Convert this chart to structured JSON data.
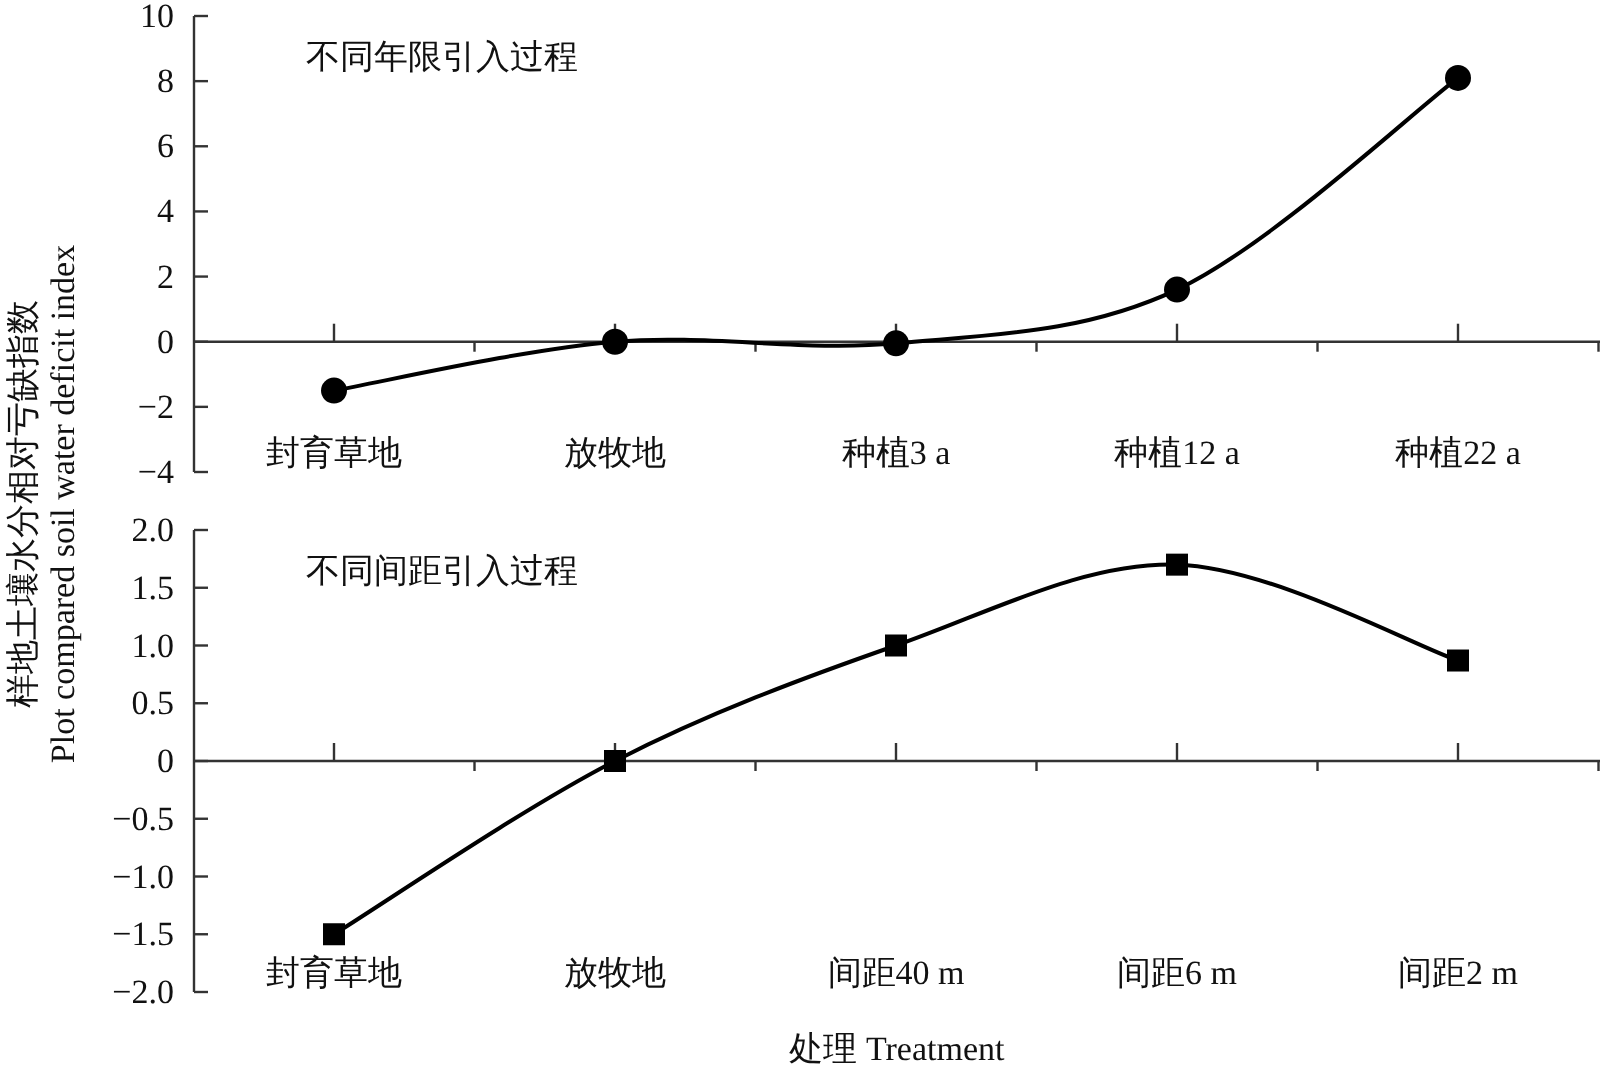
{
  "chart_data": [
    {
      "type": "line",
      "title": "不同年限引入过程",
      "ylabel": "样地土壤水分相对亏缺指数\nPlot compared soil water deficit index",
      "categories": [
        "封育草地",
        "放牧地",
        "种植3 a",
        "种植12 a",
        "种植22 a"
      ],
      "series": [
        {
          "color": "#000000",
          "values": [
            -1.5,
            0,
            -0.05,
            1.6,
            8.1
          ]
        }
      ],
      "ylim": [
        -4,
        10
      ],
      "yticks": [
        -4,
        -2,
        0,
        2,
        4,
        6,
        8,
        10
      ],
      "marker": "circle",
      "line_style": "solid"
    },
    {
      "type": "line",
      "title": "不同间距引入过程",
      "xlabel": "处理 Treatment",
      "categories": [
        "封育草地",
        "放牧地",
        "间距40 m",
        "间距6 m",
        "间距2 m"
      ],
      "series": [
        {
          "color": "#000000",
          "values": [
            -1.5,
            0,
            1.0,
            1.7,
            0.87
          ]
        }
      ],
      "ylim": [
        -2,
        2
      ],
      "yticks": [
        {
          "value": -2,
          "label": "−2.0"
        },
        {
          "value": -1.5,
          "label": "−1.5"
        },
        {
          "value": -1,
          "label": "−1.0"
        },
        {
          "value": -0.5,
          "label": "−0.5"
        },
        0,
        {
          "value": 0.5,
          "label": "0.5"
        },
        {
          "value": 1,
          "label": "1.0"
        },
        {
          "value": 1.5,
          "label": "1.5"
        },
        {
          "value": 2,
          "label": "2.0"
        }
      ],
      "marker": "square",
      "line_style": "solid"
    }
  ]
}
